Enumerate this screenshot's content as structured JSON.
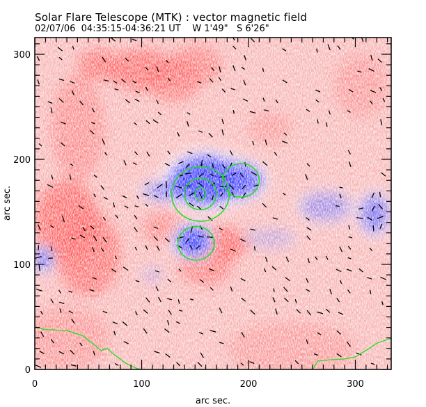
{
  "header": {
    "title": "Solar Flare Telescope (MTK) : vector magnetic field",
    "date": "02/07/06",
    "time_range": "04:35:15-04:36:21 UT",
    "position_w": "W 1'49\"",
    "position_s": "S 6'26\""
  },
  "chart_data": {
    "type": "heatmap",
    "title": "Solar Flare Telescope (MTK) : vector magnetic field",
    "subtitle": "02/07/06  04:35:15-04:36:21 UT    W 1'49\"   S 6'26\"",
    "xlabel": "arc sec.",
    "ylabel": "arc sec.",
    "xlim": [
      0,
      335
    ],
    "ylim": [
      0,
      316
    ],
    "x_ticks": [
      0,
      100,
      200,
      300
    ],
    "y_ticks": [
      0,
      100,
      200,
      300
    ],
    "x_tick_labels": [
      "0",
      "100",
      "200",
      "300"
    ],
    "y_tick_labels": [
      "0",
      "100",
      "200",
      "300"
    ],
    "minor_tick_step": 10,
    "colors": {
      "positive_polarity": "#ff4d4d",
      "negative_polarity": "#3333ff",
      "contour": "#22dd22",
      "vectors": "#000000",
      "background": "#ffffff"
    },
    "legend": "none",
    "positive_regions": [
      {
        "x": 60,
        "y": 290,
        "rx": 20,
        "ry": 15,
        "strength": 0.7
      },
      {
        "x": 100,
        "y": 285,
        "rx": 30,
        "ry": 20,
        "strength": 0.75
      },
      {
        "x": 130,
        "y": 275,
        "rx": 25,
        "ry": 20,
        "strength": 0.6
      },
      {
        "x": 150,
        "y": 290,
        "rx": 25,
        "ry": 18,
        "strength": 0.55
      },
      {
        "x": 40,
        "y": 230,
        "rx": 25,
        "ry": 50,
        "strength": 0.45
      },
      {
        "x": 30,
        "y": 140,
        "rx": 30,
        "ry": 40,
        "strength": 0.8
      },
      {
        "x": 50,
        "y": 110,
        "rx": 30,
        "ry": 40,
        "strength": 0.7
      },
      {
        "x": 120,
        "y": 135,
        "rx": 20,
        "ry": 15,
        "strength": 0.5
      },
      {
        "x": 175,
        "y": 120,
        "rx": 25,
        "ry": 15,
        "strength": 0.85
      },
      {
        "x": 160,
        "y": 100,
        "rx": 25,
        "ry": 20,
        "strength": 0.6
      },
      {
        "x": 220,
        "y": 230,
        "rx": 20,
        "ry": 15,
        "strength": 0.35
      },
      {
        "x": 305,
        "y": 270,
        "rx": 25,
        "ry": 30,
        "strength": 0.35
      },
      {
        "x": 30,
        "y": 30,
        "rx": 40,
        "ry": 30,
        "strength": 0.35
      },
      {
        "x": 240,
        "y": 20,
        "rx": 60,
        "ry": 25,
        "strength": 0.3
      }
    ],
    "negative_regions": [
      {
        "x": 160,
        "y": 180,
        "rx": 35,
        "ry": 25,
        "strength": 1.0
      },
      {
        "x": 190,
        "y": 180,
        "rx": 25,
        "ry": 18,
        "strength": 0.85
      },
      {
        "x": 125,
        "y": 170,
        "rx": 25,
        "ry": 10,
        "strength": 0.6
      },
      {
        "x": 148,
        "y": 122,
        "rx": 18,
        "ry": 16,
        "strength": 1.0
      },
      {
        "x": 8,
        "y": 105,
        "rx": 10,
        "ry": 12,
        "strength": 0.7
      },
      {
        "x": 272,
        "y": 155,
        "rx": 25,
        "ry": 15,
        "strength": 0.45
      },
      {
        "x": 318,
        "y": 148,
        "rx": 15,
        "ry": 20,
        "strength": 0.65
      },
      {
        "x": 220,
        "y": 125,
        "rx": 25,
        "ry": 10,
        "strength": 0.25
      },
      {
        "x": 110,
        "y": 90,
        "rx": 8,
        "ry": 8,
        "strength": 0.3
      }
    ],
    "contours": [
      {
        "cx": 155,
        "cy": 167,
        "rx": 27,
        "ry": 26
      },
      {
        "cx": 155,
        "cy": 167,
        "rx": 15,
        "ry": 15
      },
      {
        "cx": 155,
        "cy": 167,
        "rx": 5,
        "ry": 6
      },
      {
        "cx": 193,
        "cy": 180,
        "rx": 17,
        "ry": 16
      },
      {
        "cx": 151,
        "cy": 120,
        "rx": 17,
        "ry": 16
      }
    ],
    "limb_lines": [
      {
        "name": "left-limb",
        "points": [
          [
            0,
            40
          ],
          [
            10,
            38
          ],
          [
            30,
            37
          ],
          [
            45,
            32
          ],
          [
            55,
            24
          ],
          [
            62,
            18
          ],
          [
            68,
            20
          ],
          [
            72,
            16
          ],
          [
            85,
            6
          ],
          [
            95,
            1
          ],
          [
            100,
            0
          ]
        ]
      },
      {
        "name": "right-limb",
        "points": [
          [
            260,
            0
          ],
          [
            265,
            8
          ],
          [
            275,
            9
          ],
          [
            290,
            10
          ],
          [
            300,
            12
          ],
          [
            310,
            18
          ],
          [
            320,
            25
          ],
          [
            335,
            30
          ]
        ]
      }
    ]
  }
}
